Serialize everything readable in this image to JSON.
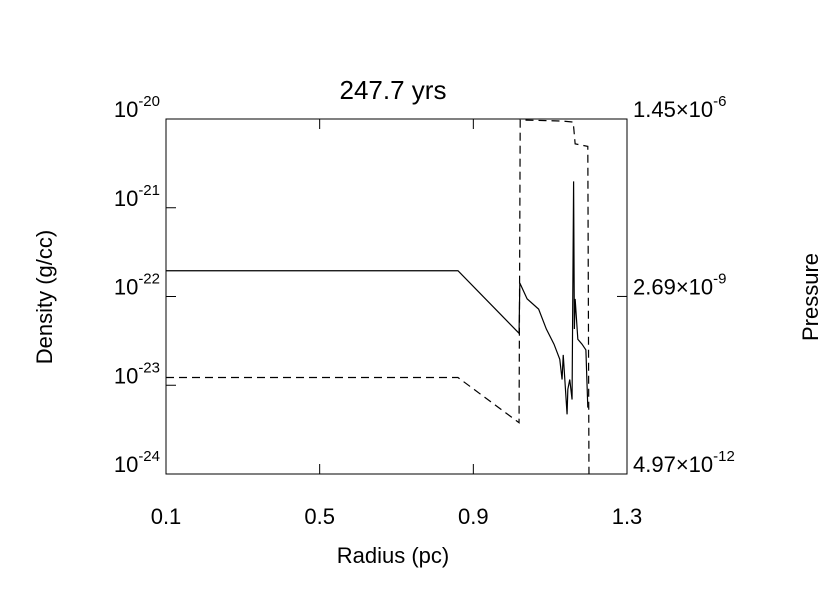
{
  "chart_data": {
    "type": "line",
    "title": "247.7 yrs",
    "x_label": "Radius (pc)",
    "y_label": "Density (g/cc)",
    "y2_label": "Pressure",
    "xlim": [
      0.1,
      1.3
    ],
    "xticks": [
      0.1,
      0.5,
      0.9,
      1.3
    ],
    "ylim": [
      1e-24,
      1e-20
    ],
    "ylog": true,
    "yticks": [
      {
        "value": 1e-24,
        "label": "10",
        "exponent": "-24"
      },
      {
        "value": 1e-23,
        "label": "10",
        "exponent": "-23"
      },
      {
        "value": 1e-22,
        "label": "10",
        "exponent": "-22"
      },
      {
        "value": 1e-21,
        "label": "10",
        "exponent": "-21"
      },
      {
        "value": 1e-20,
        "label": "10",
        "exponent": "-20"
      }
    ],
    "y2lim": [
      4.97e-12,
      1.45e-06
    ],
    "y2log": true,
    "y2ticks": [
      {
        "value": 4.97e-12,
        "label": "4.97×10",
        "exponent": "-12"
      },
      {
        "value": 2.69e-09,
        "label": "2.69×10",
        "exponent": "-9"
      },
      {
        "value": 1.45e-06,
        "label": "1.45×10",
        "exponent": "-6"
      }
    ],
    "series": [
      {
        "color": "#000000",
        "dashed": false,
        "x": [
          0.1,
          0.86,
          1.019,
          1.021,
          1.04,
          1.07,
          1.09,
          1.11,
          1.125,
          1.131,
          1.134,
          1.139,
          1.144,
          1.146,
          1.151,
          1.157,
          1.161,
          1.163,
          1.165,
          1.172,
          1.183,
          1.193,
          1.198
        ],
        "values": [
          1.95e-22,
          1.95e-22,
          3.85e-23,
          1.42e-22,
          9.4e-23,
          7.2e-23,
          4.3e-23,
          2.9e-23,
          1.96e-23,
          1.16e-23,
          2.2e-23,
          1.02e-23,
          4.7e-24,
          9e-24,
          1.16e-23,
          6.9e-24,
          1.98e-21,
          4.3e-23,
          9.4e-23,
          3.3e-23,
          2.9e-23,
          2.5e-23,
          5.6e-24
        ]
      },
      {
        "color": "#000000",
        "dashed": true,
        "axis": "y2",
        "x": [
          0.1,
          0.86,
          1.019,
          1.022,
          1.13,
          1.16,
          1.165,
          1.198,
          1.201
        ],
        "values": [
          1.52e-10,
          1.52e-10,
          3.06e-11,
          1.4e-06,
          1.35e-06,
          1.3e-06,
          6e-07,
          5.5e-07,
          5e-12
        ]
      }
    ]
  }
}
